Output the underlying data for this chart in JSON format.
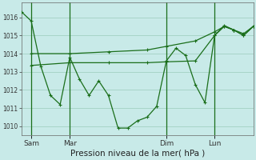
{
  "bg_color": "#c8eae8",
  "grid_color": "#a8d4c8",
  "line_color": "#1a6e1a",
  "xlabel": "Pression niveau de la mer( hPa )",
  "ylim": [
    1009.5,
    1016.8
  ],
  "yticks": [
    1010,
    1011,
    1012,
    1013,
    1014,
    1015,
    1016
  ],
  "xlim": [
    0,
    72
  ],
  "x_ticks_pos": [
    3,
    15,
    45,
    60
  ],
  "x_tick_labels": [
    "Sam",
    "Mar",
    "Dim",
    "Lun"
  ],
  "vline_x": [
    3,
    15,
    45,
    60
  ],
  "line1_x": [
    0,
    3,
    6,
    9,
    12,
    15,
    18,
    21,
    24,
    27,
    30,
    33,
    36,
    39,
    42,
    45,
    48,
    51,
    54,
    57,
    60,
    63,
    66,
    69,
    72
  ],
  "line1_y": [
    1016.3,
    1015.8,
    1013.3,
    1011.7,
    1011.2,
    1013.8,
    1012.6,
    1011.7,
    1012.5,
    1011.7,
    1009.9,
    1009.9,
    1010.3,
    1010.5,
    1011.1,
    1013.6,
    1014.3,
    1013.9,
    1012.3,
    1011.3,
    1015.0,
    1015.55,
    1015.3,
    1015.0,
    1015.5
  ],
  "line2_x": [
    3,
    15,
    27,
    39,
    45,
    54,
    60,
    63,
    66,
    69,
    72
  ],
  "line2_y": [
    1014.0,
    1014.0,
    1014.1,
    1014.2,
    1014.4,
    1014.7,
    1015.2,
    1015.5,
    1015.3,
    1015.1,
    1015.5
  ],
  "line3_x": [
    3,
    15,
    27,
    39,
    45,
    54,
    60,
    63,
    66,
    69,
    72
  ],
  "line3_y": [
    1013.35,
    1013.5,
    1013.5,
    1013.5,
    1013.55,
    1013.6,
    1015.0,
    1015.5,
    1015.3,
    1015.0,
    1015.5
  ]
}
